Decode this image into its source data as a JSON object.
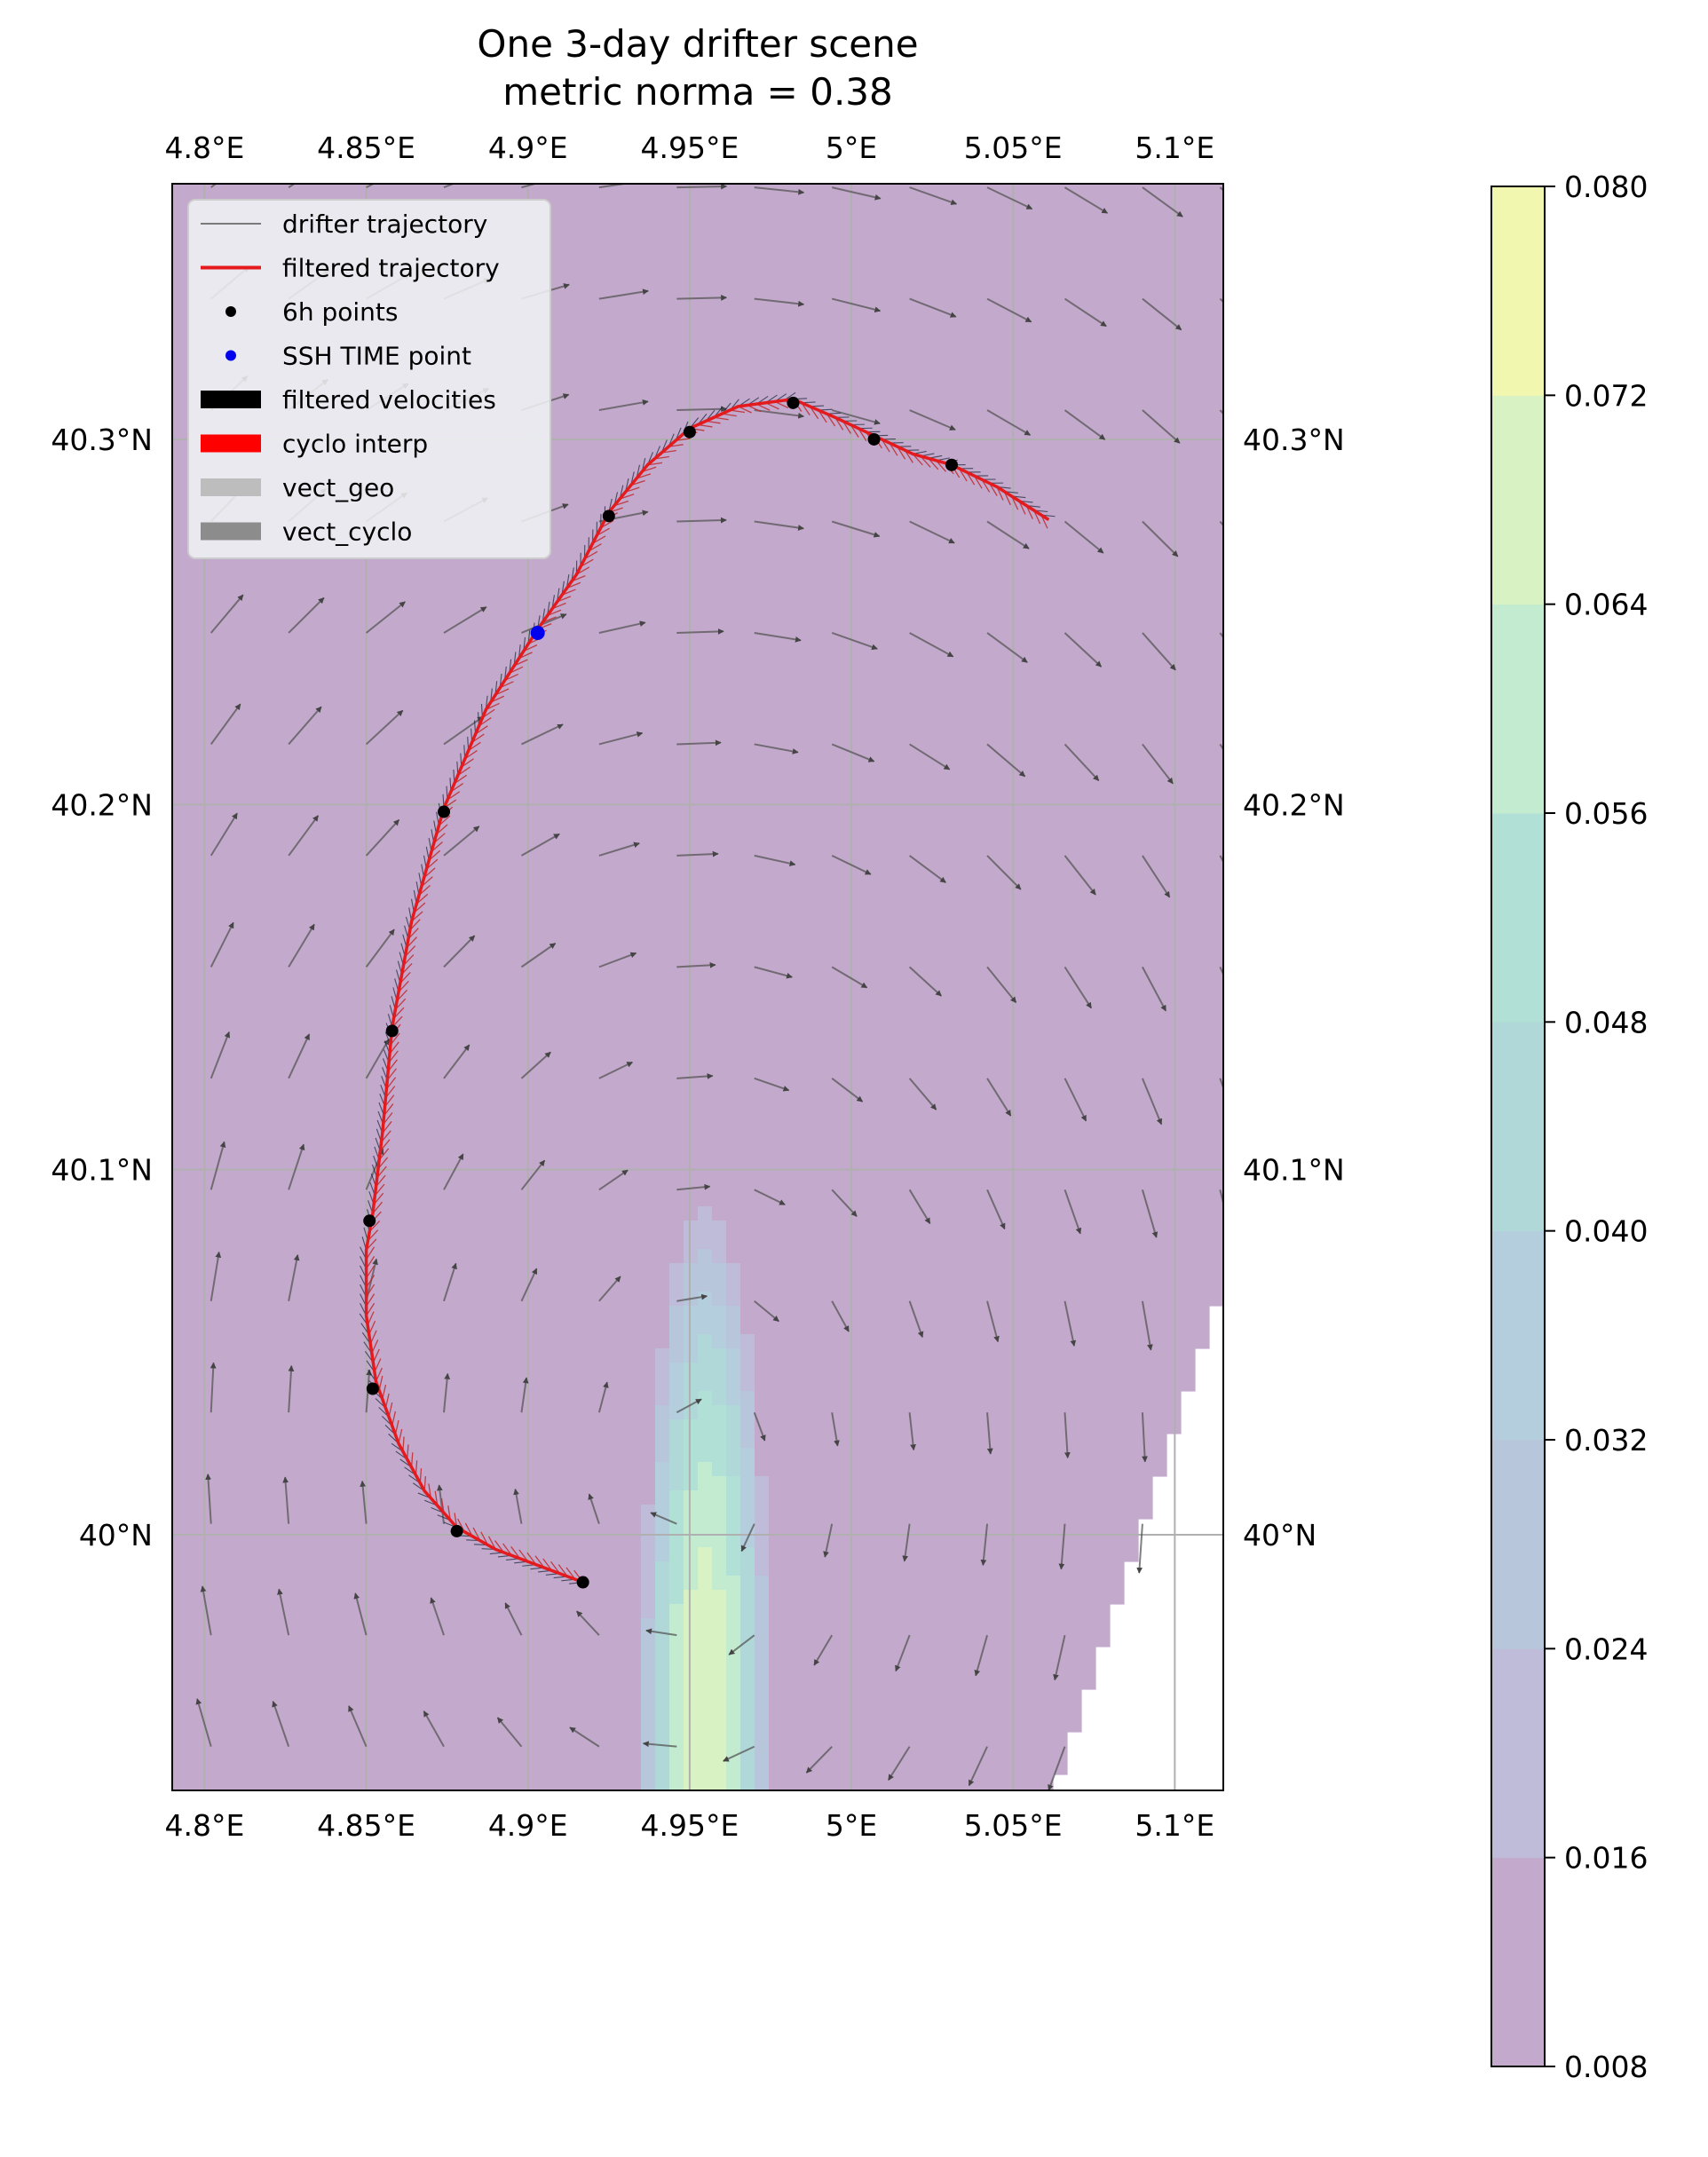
{
  "chart_data": {
    "type": "map",
    "title": "One 3-day drifter scene",
    "subtitle": "metric norma = 0.38",
    "xlim": [
      4.79,
      5.115
    ],
    "ylim": [
      39.93,
      40.37
    ],
    "lon_ticks": [
      4.8,
      4.85,
      4.9,
      4.95,
      5.0,
      5.05,
      5.1
    ],
    "lon_tick_labels": [
      "4.8°E",
      "4.85°E",
      "4.9°E",
      "4.95°E",
      "5°E",
      "5.05°E",
      "5.1°E"
    ],
    "lat_ticks": [
      40.0,
      40.1,
      40.2,
      40.3
    ],
    "lat_tick_labels": [
      "40°N",
      "40.1°N",
      "40.2°N",
      "40.3°N"
    ],
    "grid": true,
    "legend": {
      "placement": "top-left",
      "entries": [
        {
          "key": "traj",
          "label": "drifter trajectory",
          "color": "#555555",
          "kind": "thin-line"
        },
        {
          "key": "filt",
          "label": "filtered trajectory",
          "color": "#e41a1c",
          "kind": "line"
        },
        {
          "key": "pts6h",
          "label": "6h points",
          "color": "#000000",
          "kind": "dot"
        },
        {
          "key": "ssh",
          "label": "SSH TIME point",
          "color": "#0000ee",
          "kind": "dot"
        },
        {
          "key": "fvel",
          "label": "filtered velocities",
          "color": "#000000",
          "kind": "patch"
        },
        {
          "key": "cyc",
          "label": "cyclo interp",
          "color": "#ff0000",
          "kind": "patch"
        },
        {
          "key": "geo",
          "label": "vect_geo",
          "color": "#bdbdbd",
          "kind": "patch"
        },
        {
          "key": "vcyc",
          "label": "vect_cyclo",
          "color": "#8c8c8c",
          "kind": "patch"
        }
      ]
    },
    "colorbar": {
      "ticks": [
        0.008,
        0.016,
        0.024,
        0.032,
        0.04,
        0.048,
        0.056,
        0.064,
        0.072,
        0.08
      ],
      "tick_labels": [
        "0.008",
        "0.016",
        "0.024",
        "0.032",
        "0.040",
        "0.048",
        "0.056",
        "0.064",
        "0.072",
        "0.080"
      ],
      "colors": [
        "#c3a9cc",
        "#bfbcd9",
        "#b8c6db",
        "#b4cede",
        "#b1d8d9",
        "#b1e0d6",
        "#c2ebd0",
        "#d9f2c3",
        "#f2f7b0"
      ]
    },
    "ssh_field": {
      "center_lon": 4.955,
      "center_lat": 39.945,
      "peak": 0.071
    },
    "trajectory": [
      [
        4.917,
        39.987
      ],
      [
        4.905,
        39.991
      ],
      [
        4.89,
        39.996
      ],
      [
        4.878,
        40.002
      ],
      [
        4.868,
        40.012
      ],
      [
        4.86,
        40.025
      ],
      [
        4.853,
        40.042
      ],
      [
        4.85,
        40.06
      ],
      [
        4.85,
        40.078
      ],
      [
        4.852,
        40.088
      ],
      [
        4.855,
        40.11
      ],
      [
        4.858,
        40.139
      ],
      [
        4.864,
        40.168
      ],
      [
        4.874,
        40.199
      ],
      [
        4.887,
        40.226
      ],
      [
        4.903,
        40.248
      ],
      [
        4.915,
        40.263
      ],
      [
        4.925,
        40.28
      ],
      [
        4.937,
        40.293
      ],
      [
        4.95,
        40.303
      ],
      [
        4.965,
        40.309
      ],
      [
        4.982,
        40.311
      ],
      [
        4.995,
        40.306
      ],
      [
        5.007,
        40.301
      ],
      [
        5.019,
        40.296
      ],
      [
        5.031,
        40.293
      ],
      [
        5.045,
        40.287
      ],
      [
        5.061,
        40.278
      ]
    ],
    "six_hour_points": [
      [
        4.917,
        39.987
      ],
      [
        4.878,
        40.001
      ],
      [
        4.852,
        40.04
      ],
      [
        4.851,
        40.086
      ],
      [
        4.858,
        40.138
      ],
      [
        4.874,
        40.198
      ],
      [
        4.925,
        40.279
      ],
      [
        4.95,
        40.302
      ],
      [
        4.982,
        40.31
      ],
      [
        5.007,
        40.3
      ],
      [
        5.031,
        40.293
      ]
    ],
    "ssh_time_point": [
      4.903,
      40.247
    ]
  }
}
